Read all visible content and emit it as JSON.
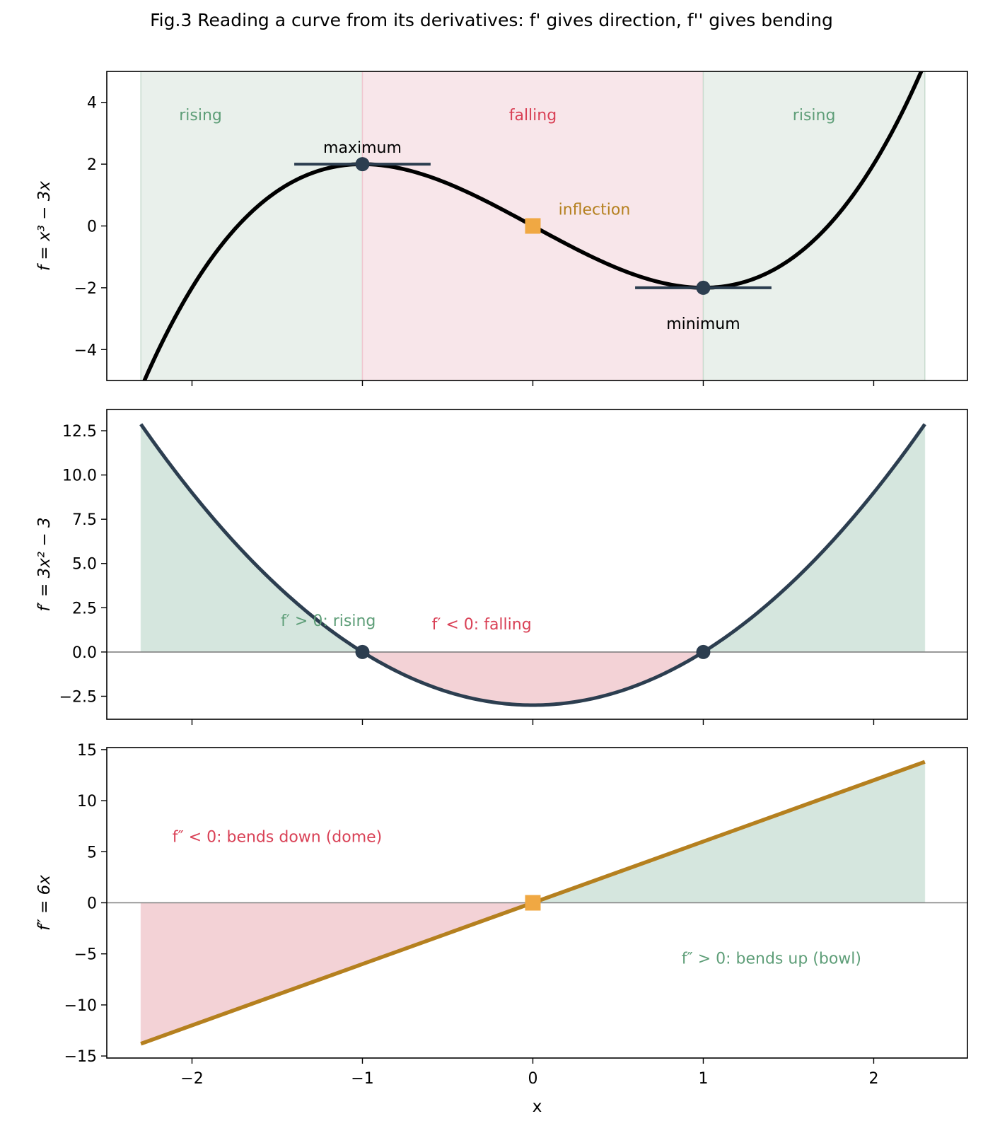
{
  "figure": {
    "title": "Fig.3 Reading a curve from its derivatives: f' gives direction, f'' gives bending",
    "colors": {
      "curve": "#000000",
      "navy": "#2c3e50",
      "gold": "#b5801f",
      "orange": "#f0a843",
      "rising_fill": "#e9f0eb",
      "falling_fill": "#f8e6ea",
      "pos_fill": "#d5e6de",
      "neg_fill": "#f3d2d6",
      "green_text": "#5e9e78",
      "red_text": "#d94156",
      "gold_text": "#b5801f"
    }
  },
  "chart_data": [
    {
      "type": "line",
      "function": "f(x) = x^3 - 3x",
      "ylabel": "f = x³ − 3x",
      "x_range": [
        -2.3,
        2.3
      ],
      "xlim": [
        -2.5,
        2.55
      ],
      "ylim": [
        -5,
        5
      ],
      "yticks": [
        -4,
        -2,
        0,
        2,
        4
      ],
      "tick_labels": {
        "y": [
          "−4",
          "−2",
          "0",
          "2",
          "4"
        ]
      },
      "regions": [
        {
          "from": -2.3,
          "to": -1,
          "label": "rising",
          "kind": "rising"
        },
        {
          "from": -1,
          "to": 1,
          "label": "falling",
          "kind": "falling"
        },
        {
          "from": 1,
          "to": 2.3,
          "label": "rising",
          "kind": "rising"
        }
      ],
      "extrema": [
        {
          "x": -1,
          "y": 2,
          "label": "maximum",
          "tangent": [
            -1.4,
            -0.6
          ]
        },
        {
          "x": 1,
          "y": -2,
          "label": "minimum",
          "tangent": [
            0.6,
            1.4
          ]
        }
      ],
      "inflection": {
        "x": 0,
        "y": 0,
        "label": "inflection"
      }
    },
    {
      "type": "line",
      "function": "f'(x) = 3x^2 - 3",
      "ylabel": "f′ = 3x² − 3",
      "x_range": [
        -2.3,
        2.3
      ],
      "xlim": [
        -2.5,
        2.55
      ],
      "ylim": [
        -3.8,
        13.7
      ],
      "yticks": [
        -2.5,
        0,
        2.5,
        5,
        7.5,
        10,
        12.5
      ],
      "tick_labels": {
        "y": [
          "−2.5",
          "0.0",
          "2.5",
          "5.0",
          "7.5",
          "10.0",
          "12.5"
        ]
      },
      "zeros": [
        -1,
        1
      ],
      "annotations": [
        {
          "text": "f′ > 0: rising",
          "x": -1.2,
          "y": 1.8,
          "kind": "positive"
        },
        {
          "text": "f′ < 0: falling",
          "x": -0.3,
          "y": 1.6,
          "kind": "negative"
        }
      ]
    },
    {
      "type": "line",
      "function": "f''(x) = 6x",
      "ylabel": "f″ = 6x",
      "xlabel": "x",
      "x_range": [
        -2.3,
        2.3
      ],
      "xlim": [
        -2.5,
        2.55
      ],
      "ylim": [
        -15.2,
        15.2
      ],
      "xticks": [
        -2,
        -1,
        0,
        1,
        2
      ],
      "yticks": [
        -15,
        -10,
        -5,
        0,
        5,
        10,
        15
      ],
      "tick_labels": {
        "x": [
          "−2",
          "−1",
          "0",
          "1",
          "2"
        ],
        "y": [
          "−15",
          "−10",
          "−5",
          "0",
          "5",
          "10",
          "15"
        ]
      },
      "inflection": {
        "x": 0,
        "y": 0
      },
      "annotations": [
        {
          "text": "f″ < 0: bends down (dome)",
          "x": -1.5,
          "y": 6.5,
          "kind": "negative"
        },
        {
          "text": "f″ > 0: bends up (bowl)",
          "x": 1.4,
          "y": -5.4,
          "kind": "positive"
        }
      ]
    }
  ]
}
